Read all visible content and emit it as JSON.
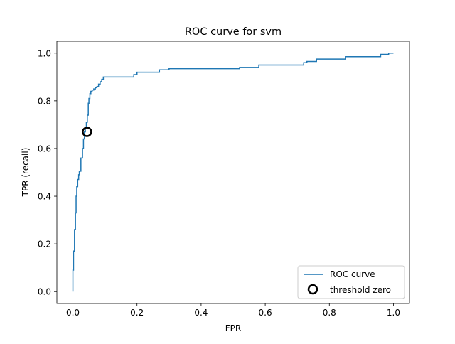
{
  "chart_data": {
    "type": "line",
    "title": "ROC curve for svm",
    "xlabel": "FPR",
    "ylabel": "TPR (recall)",
    "xlim": [
      -0.05,
      1.05
    ],
    "ylim": [
      -0.05,
      1.05
    ],
    "xticks": [
      0.0,
      0.2,
      0.4,
      0.6,
      0.8,
      1.0
    ],
    "xtick_labels": [
      "0.0",
      "0.2",
      "0.4",
      "0.6",
      "0.8",
      "1.0"
    ],
    "yticks": [
      0.0,
      0.2,
      0.4,
      0.6,
      0.8,
      1.0
    ],
    "ytick_labels": [
      "0.0",
      "0.2",
      "0.4",
      "0.6",
      "0.8",
      "1.0"
    ],
    "grid": false,
    "legend_placement": "lower-right",
    "series": [
      {
        "name": "ROC curve",
        "color": "#1f77b4",
        "style": "step",
        "x": [
          0.0,
          0.0,
          0.002,
          0.002,
          0.005,
          0.005,
          0.008,
          0.008,
          0.01,
          0.01,
          0.012,
          0.012,
          0.015,
          0.015,
          0.018,
          0.018,
          0.02,
          0.02,
          0.025,
          0.025,
          0.03,
          0.03,
          0.033,
          0.033,
          0.036,
          0.036,
          0.039,
          0.039,
          0.042,
          0.042,
          0.045,
          0.045,
          0.048,
          0.048,
          0.05,
          0.05,
          0.053,
          0.053,
          0.056,
          0.056,
          0.06,
          0.06,
          0.065,
          0.065,
          0.07,
          0.07,
          0.075,
          0.075,
          0.08,
          0.08,
          0.085,
          0.085,
          0.09,
          0.09,
          0.095,
          0.095,
          0.19,
          0.19,
          0.2,
          0.2,
          0.27,
          0.27,
          0.3,
          0.3,
          0.52,
          0.52,
          0.58,
          0.58,
          0.72,
          0.72,
          0.73,
          0.73,
          0.76,
          0.76,
          0.85,
          0.85,
          0.96,
          0.96,
          0.985,
          0.985,
          1.0
        ],
        "y": [
          0.0,
          0.09,
          0.09,
          0.17,
          0.17,
          0.26,
          0.26,
          0.33,
          0.33,
          0.4,
          0.4,
          0.44,
          0.44,
          0.47,
          0.47,
          0.49,
          0.49,
          0.505,
          0.505,
          0.56,
          0.56,
          0.6,
          0.6,
          0.64,
          0.64,
          0.67,
          0.67,
          0.69,
          0.69,
          0.71,
          0.71,
          0.74,
          0.74,
          0.79,
          0.79,
          0.81,
          0.81,
          0.83,
          0.83,
          0.84,
          0.84,
          0.845,
          0.845,
          0.85,
          0.85,
          0.855,
          0.855,
          0.86,
          0.86,
          0.87,
          0.87,
          0.88,
          0.88,
          0.89,
          0.89,
          0.9,
          0.9,
          0.91,
          0.91,
          0.92,
          0.92,
          0.93,
          0.93,
          0.935,
          0.935,
          0.94,
          0.94,
          0.95,
          0.95,
          0.96,
          0.96,
          0.965,
          0.965,
          0.975,
          0.975,
          0.985,
          0.985,
          0.995,
          0.995,
          1.0,
          1.0
        ]
      },
      {
        "name": "threshold zero",
        "type": "marker",
        "marker": "circle-open",
        "color": "#000000",
        "x": [
          0.044
        ],
        "y": [
          0.67
        ]
      }
    ]
  }
}
